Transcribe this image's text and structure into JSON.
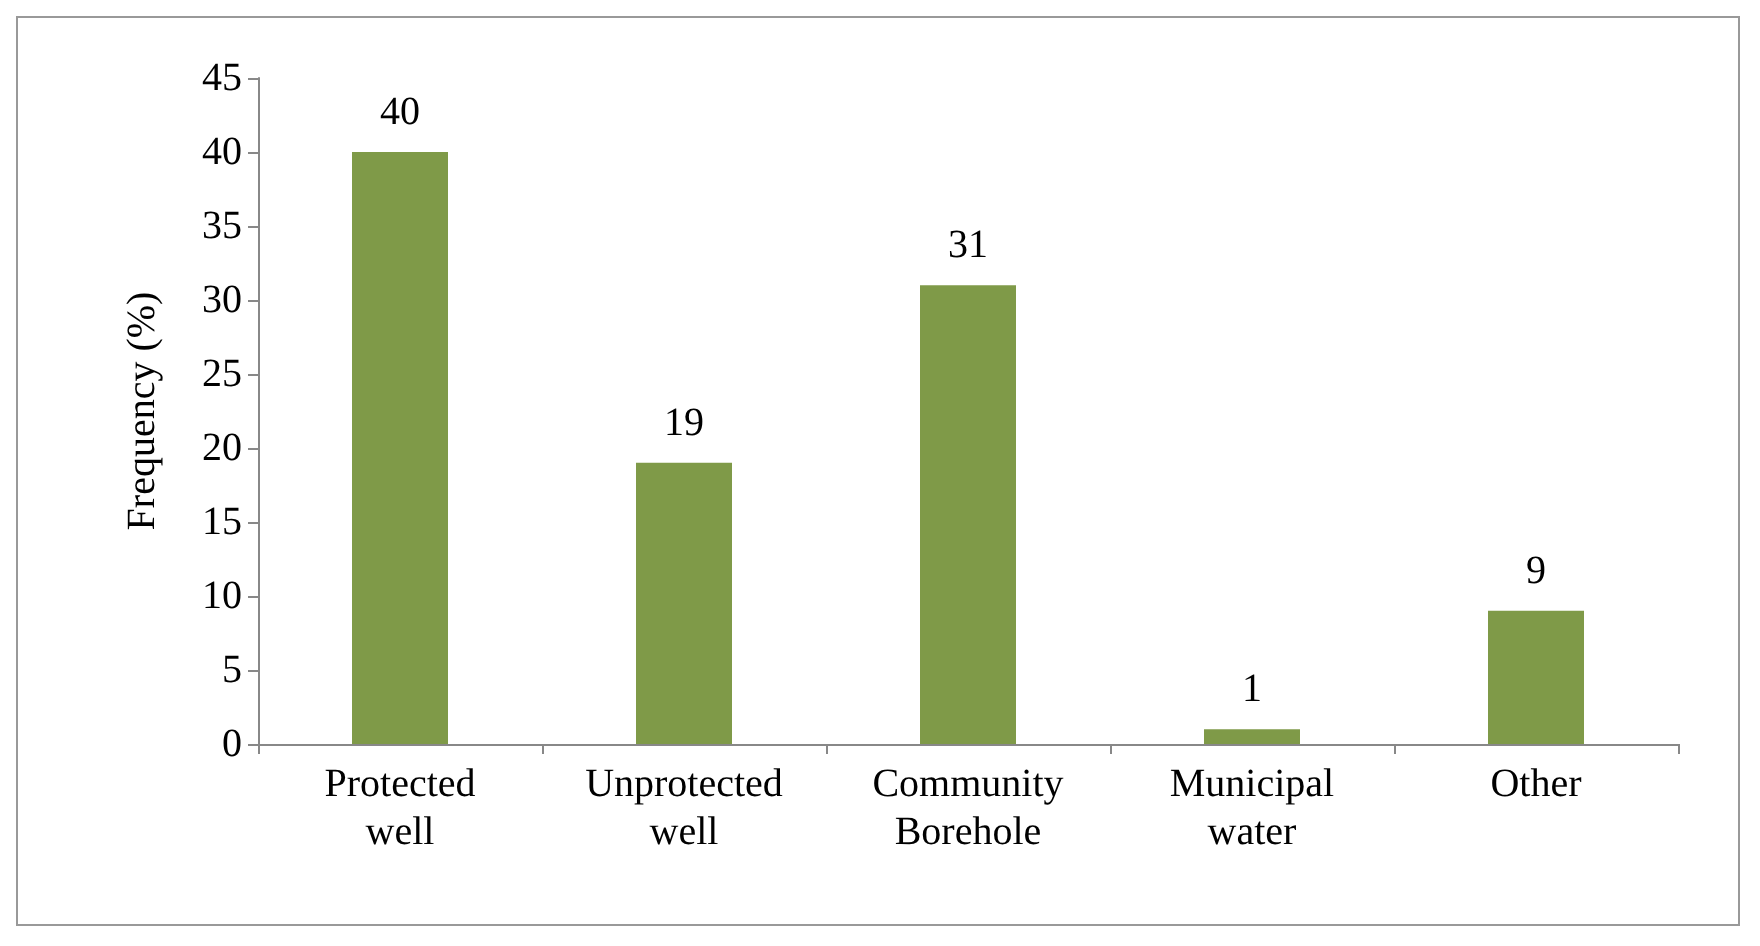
{
  "chart_data": {
    "type": "bar",
    "ylabel": "Frequency (%)",
    "categories": [
      "Protected well",
      "Unprotected well",
      "Community Borehole",
      "Municipal water",
      "Other"
    ],
    "values": [
      40,
      19,
      31,
      1,
      9
    ],
    "color": "#7f9a48",
    "ylim": [
      0,
      45
    ],
    "yticks": [
      0,
      5,
      10,
      15,
      20,
      25,
      30,
      35,
      40,
      45
    ],
    "grid": false,
    "data_labels": true
  }
}
